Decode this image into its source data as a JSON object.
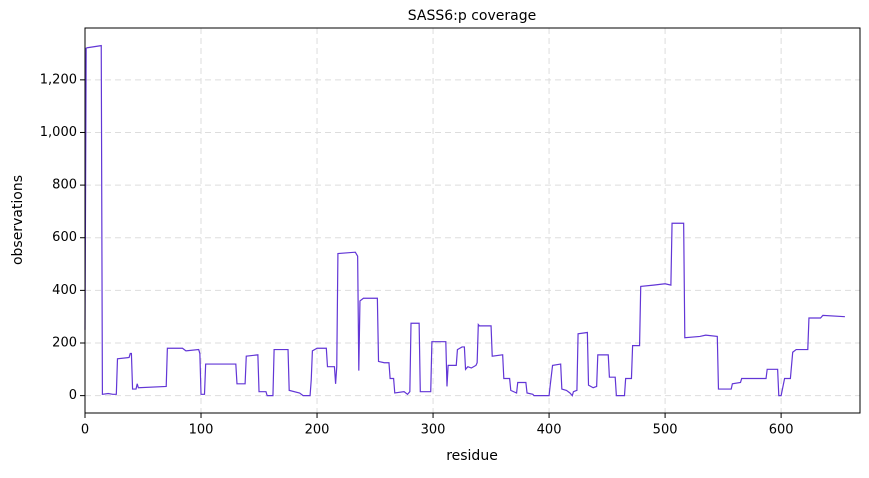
{
  "chart_data": {
    "type": "line",
    "title": "SASS6:p coverage",
    "x_label": "residue",
    "y_label": "observations",
    "series": [
      {
        "name": "SASS6:p",
        "color": "#6236d6",
        "x": [
          0,
          1,
          2,
          14,
          15,
          20,
          24,
          27,
          28,
          38,
          39,
          40,
          41,
          44,
          45,
          46,
          70,
          71,
          84,
          87,
          98,
          99,
          100,
          103,
          104,
          106,
          130,
          131,
          138,
          139,
          149,
          150,
          156,
          157,
          162,
          163,
          175,
          176,
          185,
          188,
          194,
          195,
          196,
          200,
          208,
          209,
          215,
          216,
          217,
          218,
          233,
          235,
          236,
          237,
          240,
          252,
          253,
          258,
          262,
          263,
          266,
          267,
          275,
          278,
          280,
          281,
          288,
          289,
          298,
          299,
          311,
          312,
          313,
          320,
          321,
          325,
          327,
          328,
          330,
          333,
          337,
          338,
          339,
          340,
          350,
          351,
          360,
          361,
          366,
          367,
          372,
          373,
          380,
          381,
          386,
          387,
          400,
          401,
          403,
          410,
          411,
          415,
          418,
          420,
          421,
          424,
          425,
          433,
          434,
          438,
          441,
          442,
          451,
          452,
          457,
          458,
          465,
          466,
          471,
          472,
          478,
          479,
          490,
          500,
          505,
          506,
          516,
          517,
          530,
          535,
          545,
          546,
          557,
          558,
          565,
          566,
          587,
          588,
          597,
          598,
          600,
          603,
          608,
          610,
          613,
          623,
          624,
          634,
          636,
          655
        ],
        "values": [
          250,
          1320,
          1322,
          1330,
          5,
          8,
          5,
          5,
          140,
          145,
          160,
          160,
          25,
          25,
          45,
          30,
          35,
          180,
          180,
          170,
          175,
          160,
          5,
          5,
          120,
          120,
          120,
          45,
          45,
          150,
          155,
          15,
          15,
          0,
          0,
          175,
          175,
          20,
          10,
          0,
          0,
          60,
          170,
          180,
          180,
          110,
          110,
          45,
          110,
          540,
          545,
          530,
          95,
          360,
          370,
          370,
          130,
          125,
          125,
          65,
          65,
          10,
          15,
          5,
          15,
          275,
          275,
          15,
          15,
          205,
          205,
          35,
          115,
          115,
          175,
          185,
          185,
          100,
          110,
          105,
          115,
          125,
          270,
          265,
          265,
          150,
          155,
          65,
          65,
          20,
          10,
          50,
          50,
          10,
          5,
          0,
          0,
          40,
          115,
          120,
          25,
          20,
          10,
          0,
          15,
          20,
          235,
          240,
          40,
          30,
          35,
          155,
          155,
          70,
          70,
          0,
          0,
          65,
          65,
          190,
          190,
          415,
          420,
          425,
          420,
          655,
          655,
          220,
          225,
          230,
          225,
          25,
          25,
          45,
          50,
          65,
          65,
          100,
          100,
          0,
          0,
          65,
          65,
          165,
          175,
          175,
          295,
          295,
          305,
          300
        ]
      }
    ],
    "xlim": [
      0,
      668
    ],
    "ylim": [
      -66,
      1397
    ],
    "xticks": [
      0,
      100,
      200,
      300,
      400,
      500,
      600
    ],
    "yticks": [
      0,
      200,
      400,
      600,
      800,
      {
        "value": 1000,
        "label": "1,000"
      },
      {
        "value": 1200,
        "label": "1,200"
      }
    ],
    "grid": true
  }
}
